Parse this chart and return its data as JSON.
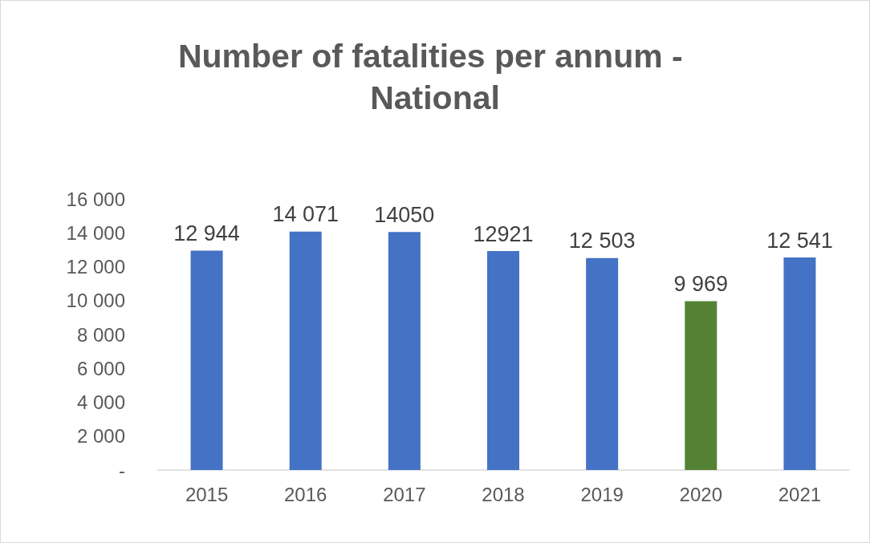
{
  "chart_data": {
    "type": "bar",
    "title": "Number of fatalities per annum - National",
    "categories": [
      "2015",
      "2016",
      "2017",
      "2018",
      "2019",
      "2020",
      "2021"
    ],
    "values": [
      12944,
      14071,
      14050,
      12921,
      12503,
      9969,
      12541
    ],
    "colors": [
      "#4472c4",
      "#4472c4",
      "#4472c4",
      "#4472c4",
      "#4472c4",
      "#548235",
      "#4472c4"
    ],
    "value_labels": [
      "12 944",
      "14 071",
      "14050",
      "12921",
      "12 503",
      "9 969",
      "12 541"
    ],
    "ylim": [
      0,
      16000
    ],
    "yticks": [
      {
        "value": 0,
        "label": "-"
      },
      {
        "value": 2000,
        "label": "2 000"
      },
      {
        "value": 4000,
        "label": "4 000"
      },
      {
        "value": 6000,
        "label": "6 000"
      },
      {
        "value": 8000,
        "label": "8 000"
      },
      {
        "value": 10000,
        "label": "10 000"
      },
      {
        "value": 12000,
        "label": "12 000"
      },
      {
        "value": 14000,
        "label": "14 000"
      },
      {
        "value": 16000,
        "label": "16 000"
      }
    ],
    "grid": false
  }
}
